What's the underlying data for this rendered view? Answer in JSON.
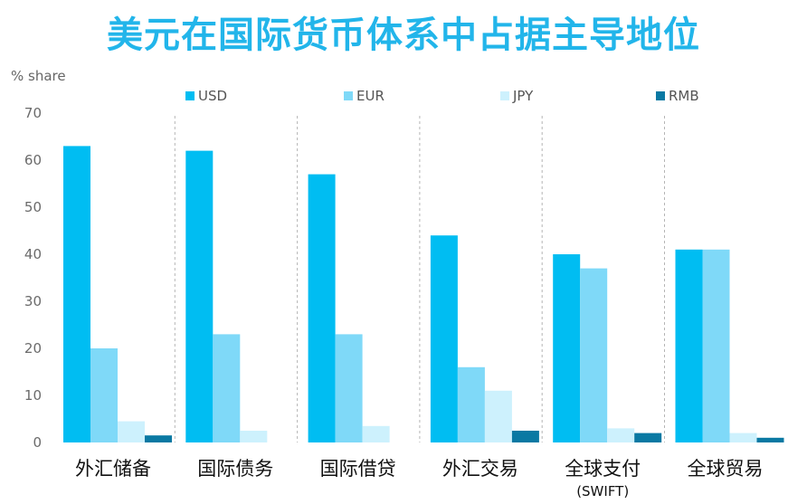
{
  "title": "美元在国际货币体系中占据主导地位",
  "chart_data": {
    "type": "bar",
    "ylabel": "% share",
    "ylim": [
      0,
      70
    ],
    "yticks": [
      0,
      10,
      20,
      30,
      40,
      50,
      60,
      70
    ],
    "categories": [
      "外汇储备",
      "国际债务",
      "国际借贷",
      "外汇交易",
      "全球支付",
      "全球贸易"
    ],
    "category_sublabels": [
      "",
      "",
      "",
      "",
      "(SWIFT)",
      ""
    ],
    "legend_position": "top",
    "grid": false,
    "series": [
      {
        "name": "USD",
        "color": "#00bdf2",
        "values": [
          63,
          62,
          57,
          44,
          40,
          41
        ]
      },
      {
        "name": "EUR",
        "color": "#7fd9f8",
        "values": [
          20,
          23,
          23,
          16,
          37,
          41
        ]
      },
      {
        "name": "JPY",
        "color": "#cdf1fd",
        "values": [
          4.5,
          2.5,
          3.5,
          11,
          3,
          2
        ]
      },
      {
        "name": "RMB",
        "color": "#0a79a3",
        "values": [
          1.5,
          0,
          0,
          2.5,
          2,
          1
        ]
      }
    ]
  }
}
